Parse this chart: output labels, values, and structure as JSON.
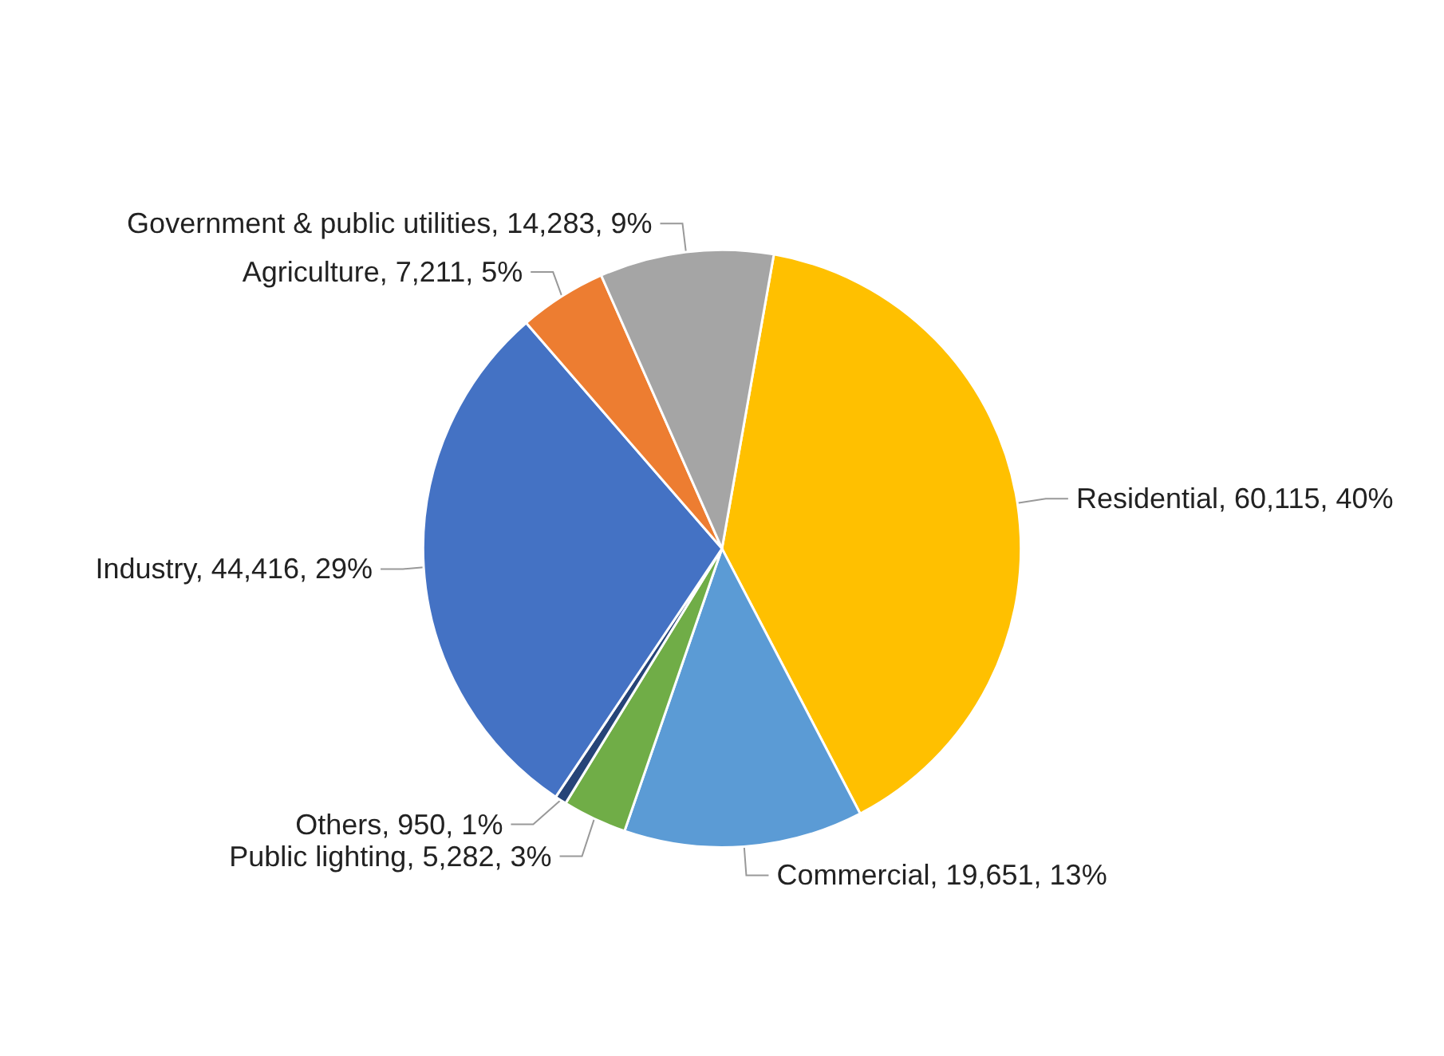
{
  "chart_data": {
    "type": "pie",
    "categories": [
      "Residential",
      "Commercial",
      "Public lighting",
      "Others",
      "Industry",
      "Agriculture",
      "Government & public utilities"
    ],
    "values": [
      60115,
      19651,
      5282,
      950,
      44416,
      7211,
      14283
    ],
    "value_labels": [
      "60,115, 40%",
      "19,651, 13%",
      "5,282, 3%",
      "950, 1%",
      "44,416, 29%",
      "7,211, 5%",
      "14,283, 9%"
    ],
    "colors": [
      "#ffc000",
      "#5b9bd5",
      "#70ad47",
      "#264478",
      "#4472c4",
      "#ed7d31",
      "#a5a5a5"
    ],
    "legend": false
  }
}
